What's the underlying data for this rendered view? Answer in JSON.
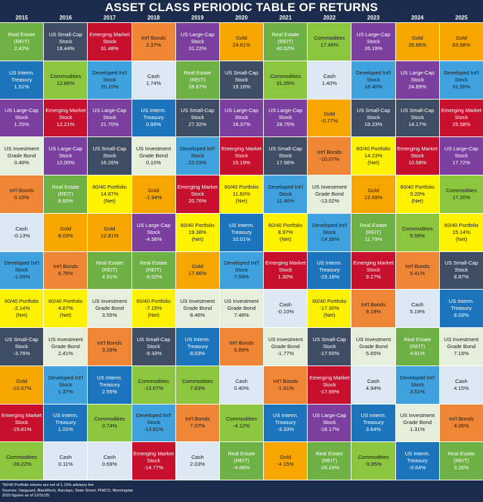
{
  "header": {
    "title": "ASSET CLASS PERIODIC TABLE OF RETURNS"
  },
  "table": {
    "years": [
      "2015",
      "2016",
      "2017",
      "2018",
      "2019",
      "2020",
      "2021",
      "2022",
      "2023",
      "2024",
      "2025"
    ],
    "colors": {
      "Real Estate": {
        "bg": "#6db144",
        "fg": "#ffffff"
      },
      "US Small-Cap": {
        "bg": "#3e4d63",
        "fg": "#ffffff"
      },
      "Emerging Market": {
        "bg": "#c8102e",
        "fg": "#ffffff"
      },
      "Int'l Bonds": {
        "bg": "#ee8636",
        "fg": "#1a1a1a"
      },
      "US Large-Cap": {
        "bg": "#7b3fa0",
        "fg": "#ffffff"
      },
      "Gold": {
        "bg": "#f7a600",
        "fg": "#1a1a1a"
      },
      "Commodities": {
        "bg": "#8cc63f",
        "fg": "#1a1a1a"
      },
      "US Interm.": {
        "bg": "#1c75bc",
        "fg": "#ffffff"
      },
      "Cash": {
        "bg": "#dce8f4",
        "fg": "#1a1a1a"
      },
      "Developed Int'l": {
        "bg": "#3fa2de",
        "fg": "#1a1a1a"
      },
      "US Investment": {
        "bg": "#e6eedc",
        "fg": "#1a1a1a"
      },
      "60/40 Portfolio": {
        "bg": "#fff200",
        "fg": "#1a1a1a"
      }
    },
    "rows": [
      [
        [
          "Real Estate",
          "(REIT)",
          "2.42%"
        ],
        [
          "US Small-Cap",
          "Stock",
          "18.44%"
        ],
        [
          "Emerging Market",
          "Stock",
          "31.48%"
        ],
        [
          "Int'l Bonds",
          "2.37%"
        ],
        [
          "US Large-Cap",
          "Stock",
          "31.22%"
        ],
        [
          "Gold",
          "24.81%"
        ],
        [
          "Real Estate",
          "(REIT)",
          "40.52%"
        ],
        [
          "Commodities",
          "17.46%"
        ],
        [
          "US Large-Cap",
          "Stock",
          "26.19%"
        ],
        [
          "Gold",
          "26.66%"
        ],
        [
          "Gold",
          "63.68%"
        ]
      ],
      [
        [
          "US Interm.",
          "Treasury",
          "1.51%"
        ],
        [
          "Commodities",
          "12.86%"
        ],
        [
          "Developed Int'l",
          "Stock",
          "25.10%"
        ],
        [
          "Cash",
          "1.74%"
        ],
        [
          "Real Estate",
          "(REIT)",
          "28.87%"
        ],
        [
          "US Small-Cap",
          "Stock",
          "19.16%"
        ],
        [
          "Commodities",
          "31.05%"
        ],
        [
          "Cash",
          "1.40%"
        ],
        [
          "Developed Int'l",
          "Stock",
          "18.40%"
        ],
        [
          "US Large-Cap",
          "Stock",
          "24.89%"
        ],
        [
          "Developed Int'l",
          "Stock",
          "31.55%"
        ]
      ],
      [
        [
          "US Large-Cap",
          "Stock",
          "1.25%"
        ],
        [
          "Emerging Market",
          "Stock",
          "12.21%"
        ],
        [
          "US Large-Cap",
          "Stock",
          "21.70%"
        ],
        [
          "US Interm.",
          "Treasury",
          "0.99%"
        ],
        [
          "US Small-Cap",
          "Stock",
          "27.32%"
        ],
        [
          "US Large-Cap",
          "Stock",
          "18.37%"
        ],
        [
          "US Large-Cap",
          "Stock",
          "28.75%"
        ],
        [
          "Gold",
          "-0.77%"
        ],
        [
          "US Small-Cap",
          "Stock",
          "18.23%"
        ],
        [
          "US Small-Cap",
          "Stock",
          "14.17%"
        ],
        [
          "Emerging Market",
          "Stock",
          "25.58%"
        ]
      ],
      [
        [
          "US Investment",
          "Grade Bond",
          "0.48%"
        ],
        [
          "US Large-Cap",
          "Stock",
          "12.00%"
        ],
        [
          "US Small-Cap",
          "Stock",
          "16.26%"
        ],
        [
          "US Investment",
          "Grade Bond",
          "0.10%"
        ],
        [
          "Developed Int'l",
          "Stock",
          "22.03%"
        ],
        [
          "Emerging Market",
          "Stock",
          "15.19%"
        ],
        [
          "US Small-Cap",
          "Stock",
          "17.56%"
        ],
        [
          "Int'l Bonds",
          "-10.07%"
        ],
        [
          "60/40 Portfolio",
          "14.23%",
          "(Net)"
        ],
        [
          "Emerging Market",
          "Stock",
          "10.58%"
        ],
        [
          "US Large-Cap",
          "Stock",
          "17.72%"
        ]
      ],
      [
        [
          "Int'l Bonds",
          "0.15%"
        ],
        [
          "Real Estate",
          "(REIT)",
          "8.60%"
        ],
        [
          "60/40 Portfolio",
          "14.87%",
          "(Net)"
        ],
        [
          "Gold",
          "-1.94%"
        ],
        [
          "Emerging Market",
          "Stock",
          "20.76%"
        ],
        [
          "60/40 Portfolio",
          "11.80%",
          "(Net)"
        ],
        [
          "Developed Int'l",
          "Stock",
          "11.46%"
        ],
        [
          "US Investment",
          "Grade Bond",
          "-13.02%"
        ],
        [
          "Gold",
          "12.69%"
        ],
        [
          "60/40 Portfolio",
          "9.20%",
          "(Net)"
        ],
        [
          "Commodities",
          "17.20%"
        ]
      ],
      [
        [
          "Cash",
          "-0.13%"
        ],
        [
          "Gold",
          "8.03%"
        ],
        [
          "Gold",
          "12.81%"
        ],
        [
          "US Large-Cap",
          "Stock",
          "-4.56%"
        ],
        [
          "60/40 Portfolio",
          "19.38%",
          "(Net)"
        ],
        [
          "US Interm.",
          "Treasury",
          "10.01%"
        ],
        [
          "60/40 Portfolio",
          "8.97%",
          "(Net)"
        ],
        [
          "Developed Int'l",
          "Stock",
          "-14.35%"
        ],
        [
          "Real Estate",
          "(REIT)",
          "11.79%"
        ],
        [
          "Commodities",
          "5.59%"
        ],
        [
          "60/40 Portfolio",
          "15.14%",
          "(Net)"
        ]
      ],
      [
        [
          "Developed Int'l",
          "Stock",
          "-1.00%"
        ],
        [
          "Int'l Bonds",
          "6.76%"
        ],
        [
          "Real Estate",
          "(REIT)",
          "4.91%"
        ],
        [
          "Real Estate",
          "(REIT)",
          "-6.02%"
        ],
        [
          "Gold",
          "17.86%"
        ],
        [
          "Developed Int'l",
          "Stock",
          "7.59%"
        ],
        [
          "Emerging Market",
          "Stock",
          "1.30%"
        ],
        [
          "US Interm.",
          "Treasury",
          "-15.16%"
        ],
        [
          "Emerging Market",
          "Stock",
          "9.27%"
        ],
        [
          "Int'l Bonds",
          "5.41%"
        ],
        [
          "US Small-Cap",
          "Stock",
          "8.87%"
        ]
      ],
      [
        [
          "60/40 Portfolio",
          "-2.14%",
          "(Net)"
        ],
        [
          "60/40 Portfolio",
          "4.87%",
          "(Net)"
        ],
        [
          "US Investment",
          "Grade Bond",
          "3.55%"
        ],
        [
          "60/40 Portfolio",
          "-7.15%",
          "(Net)"
        ],
        [
          "US Investment",
          "Grade Bond",
          "8.46%"
        ],
        [
          "US Investment",
          "Grade Bond",
          "7.48%"
        ],
        [
          "Cash",
          "-0.10%"
        ],
        [
          "60/40 Portfolio",
          "-17.30%",
          "(Net)"
        ],
        [
          "Int'l Bonds",
          "9.18%"
        ],
        [
          "Cash",
          "5.19%"
        ],
        [
          "US Interm.",
          "Treasury",
          "8.03%"
        ]
      ],
      [
        [
          "US Small-Cap",
          "Stock",
          "-3.76%"
        ],
        [
          "US Investment",
          "Grade Bond",
          "2.41%"
        ],
        [
          "Int'l Bonds",
          "3.26%"
        ],
        [
          "US Small-Cap",
          "Stock",
          "-9.33%"
        ],
        [
          "US Interm.",
          "Treasury",
          "8.03%"
        ],
        [
          "Int'l Bonds",
          "5.89%"
        ],
        [
          "US Investment",
          "Grade Bond",
          "-1.77%"
        ],
        [
          "US Small-Cap",
          "Stock",
          "-17.50%"
        ],
        [
          "US Investment",
          "Grade Bond",
          "5.65%"
        ],
        [
          "Real Estate",
          "(REIT)",
          "4.81%"
        ],
        [
          "US Investment",
          "Grade Bond",
          "7.19%"
        ]
      ],
      [
        [
          "Gold",
          "-10.67%"
        ],
        [
          "Developed Int'l",
          "Stock",
          "1.37%"
        ],
        [
          "US Interm.",
          "Treasury",
          "2.55%"
        ],
        [
          "Commodities",
          "-13.07%"
        ],
        [
          "Commodities",
          "7.63%"
        ],
        [
          "Cash",
          "0.40%"
        ],
        [
          "Int'l Bonds",
          "-1.91%"
        ],
        [
          "Emerging Market",
          "Stock",
          "-17.99%"
        ],
        [
          "Cash",
          "4.94%"
        ],
        [
          "Developed Int'l",
          "Stock",
          "3.51%"
        ],
        [
          "Cash",
          "4.15%"
        ]
      ],
      [
        [
          "Emerging Market",
          "Stock",
          "-15.81%"
        ],
        [
          "US Interm.",
          "Treasury",
          "1.01%"
        ],
        [
          "Commodities",
          "0.74%"
        ],
        [
          "Developed Int'l",
          "Stock",
          "-13.81%"
        ],
        [
          "Int'l Bonds",
          "7.07%"
        ],
        [
          "Commodities",
          "-4.12%"
        ],
        [
          "US Interm.",
          "Treasury",
          "-3.33%"
        ],
        [
          "US Large-Cap",
          "Stock",
          "-18.17%"
        ],
        [
          "US Interm.",
          "Treasury",
          "3.64%"
        ],
        [
          "US Investment",
          "Grade Bond",
          "1.31%"
        ],
        [
          "Int'l Bonds",
          "4.05%"
        ]
      ],
      [
        [
          "Commodities",
          "-28.22%"
        ],
        [
          "Cash",
          "0.11%"
        ],
        [
          "Cash",
          "0.69%"
        ],
        [
          "Emerging Market",
          "Stock",
          "-14.77%"
        ],
        [
          "Cash",
          "2.03%"
        ],
        [
          "Real Estate",
          "(REIT)",
          "-4.68%"
        ],
        [
          "Gold",
          "-4.15%"
        ],
        [
          "Real Estate",
          "(REIT)",
          "-26.24%"
        ],
        [
          "Commodities",
          "-9.85%"
        ],
        [
          "US Interm.",
          "Treasury",
          "-0.64%"
        ],
        [
          "Real Estate",
          "(REIT)",
          "3.26%"
        ]
      ]
    ]
  },
  "footer": {
    "notes": [
      "*60/40 Portfolio returns are net of 1.15% advisory fee",
      "Sources: Vanguard, BlackRock, Barclays, State Street, PIMCO, Morningstar",
      "2025 figures as of 12/31/25"
    ]
  }
}
